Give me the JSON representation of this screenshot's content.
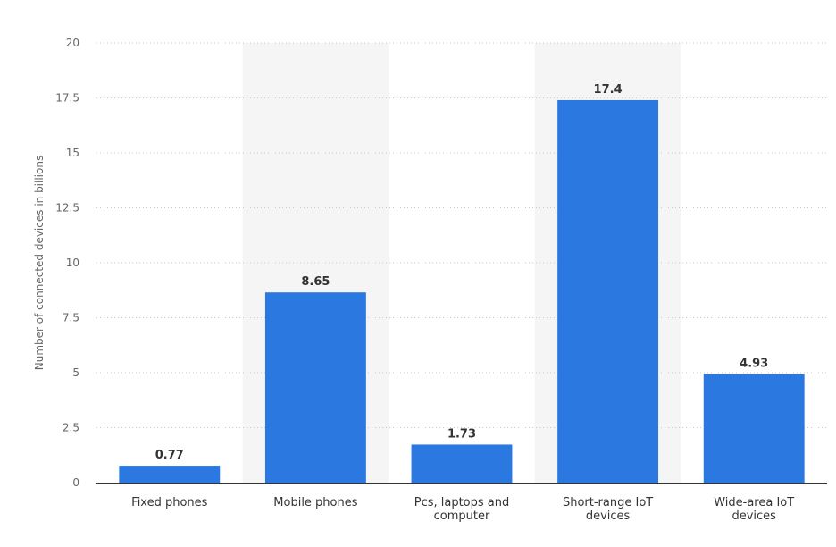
{
  "chart_data": {
    "type": "bar",
    "categories": [
      [
        "Fixed phones"
      ],
      [
        "Mobile phones"
      ],
      [
        "Pcs, laptops and",
        "computer"
      ],
      [
        "Short-range IoT",
        "devices"
      ],
      [
        "Wide-area IoT",
        "devices"
      ]
    ],
    "values": [
      0.77,
      8.65,
      1.73,
      17.4,
      4.93
    ],
    "data_labels": [
      "0.77",
      "8.65",
      "1.73",
      "17.4",
      "4.93"
    ],
    "ylabel": "Number of connected devices in billions",
    "ylim": [
      0,
      20
    ],
    "yticks": [
      0,
      2.5,
      5,
      7.5,
      10,
      12.5,
      15,
      17.5,
      20
    ],
    "ytick_labels": [
      "0",
      "2.5",
      "5",
      "7.5",
      "10",
      "12.5",
      "15",
      "17.5",
      "20"
    ],
    "grid": true,
    "bar_color": "#2a78e0",
    "band_color": "#f5f5f5",
    "grid_color": "#c8c8c8"
  }
}
